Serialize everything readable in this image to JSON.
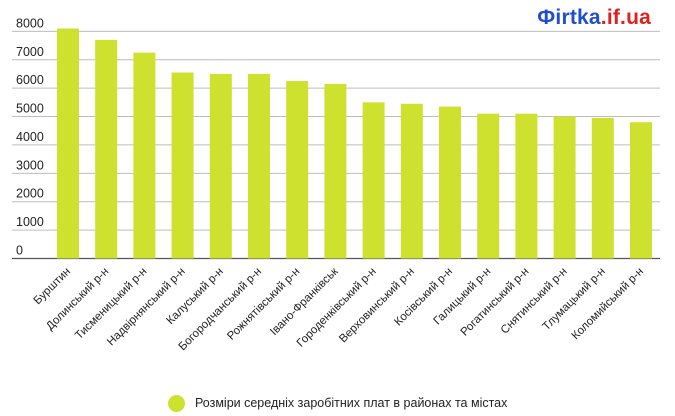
{
  "logo": {
    "main": "Фirtka",
    "tld": ".if.ua"
  },
  "colors": {
    "bar": "#cfe12f",
    "grid": "#bdbdbd",
    "text": "#222222"
  },
  "chart_data": {
    "type": "bar",
    "categories": [
      "Бурштин",
      "Долинський р-н",
      "Тисменицький р-н",
      "Надвірнянський р-н",
      "Калуський р-н",
      "Богородчанський р-н",
      "Рожнятівський р-н",
      "Івано-Франківськ",
      "Городенківський р-н",
      "Верховинський р-н",
      "Косівський р-н",
      "Галицький р-н",
      "Рогатинський р-н",
      "Снятинський р-н",
      "Тлумацький р-н",
      "Коломийський р-н"
    ],
    "series": [
      {
        "name": "Розміри середніх заробітних плат в районах та містах",
        "values": [
          8100,
          7700,
          7250,
          6550,
          6500,
          6500,
          6250,
          6150,
          5500,
          5450,
          5350,
          5100,
          5100,
          5000,
          4950,
          4800
        ]
      }
    ],
    "yticks": [
      0,
      1000,
      2000,
      3000,
      4000,
      5000,
      6000,
      7000,
      8000
    ],
    "ylim": [
      0,
      8400
    ],
    "grid": true,
    "legend": "bottom",
    "title": "",
    "xlabel": "",
    "ylabel": ""
  }
}
